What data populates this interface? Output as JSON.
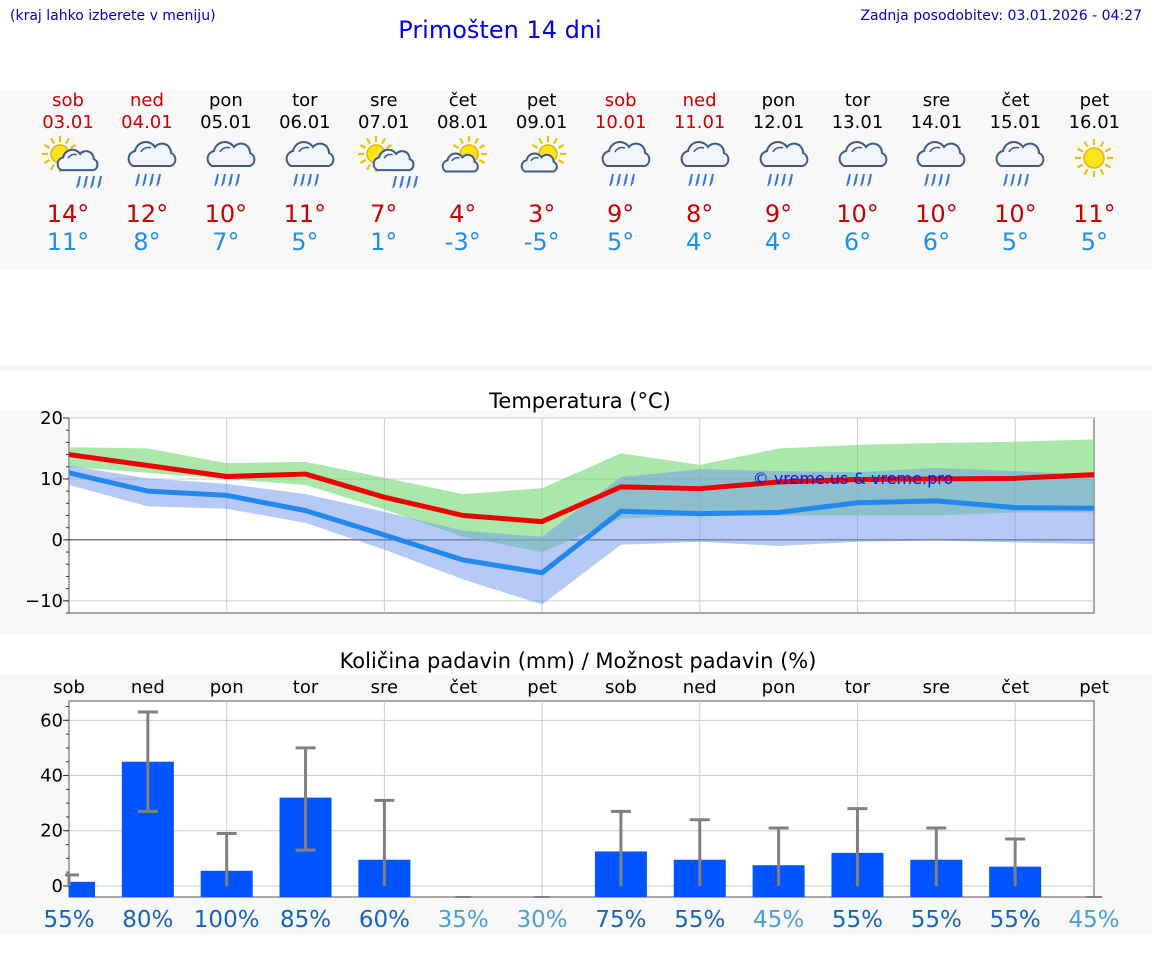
{
  "header": {
    "hint": "(kraj lahko izberete v meniju)",
    "title": "Primošten 14 dni",
    "updated": "Zadnja posodobitev: 03.01.2026 - 04:27"
  },
  "days": [
    {
      "name": "sob",
      "date": "03.01",
      "tmax": "14°",
      "tmin": "11°",
      "icon": "sun-cloud-rain-icon",
      "weekend": true
    },
    {
      "name": "ned",
      "date": "04.01",
      "tmax": "12°",
      "tmin": "8°",
      "icon": "cloud-rain-icon",
      "weekend": true
    },
    {
      "name": "pon",
      "date": "05.01",
      "tmax": "10°",
      "tmin": "7°",
      "icon": "cloud-rain-icon",
      "weekend": false
    },
    {
      "name": "tor",
      "date": "06.01",
      "tmax": "11°",
      "tmin": "5°",
      "icon": "cloud-rain-icon",
      "weekend": false
    },
    {
      "name": "sre",
      "date": "07.01",
      "tmax": "7°",
      "tmin": "1°",
      "icon": "sun-cloud-rain-icon",
      "weekend": false
    },
    {
      "name": "čet",
      "date": "08.01",
      "tmax": "4°",
      "tmin": "-3°",
      "icon": "sun-cloud-icon",
      "weekend": false
    },
    {
      "name": "pet",
      "date": "09.01",
      "tmax": "3°",
      "tmin": "-5°",
      "icon": "sun-cloud-icon",
      "weekend": false
    },
    {
      "name": "sob",
      "date": "10.01",
      "tmax": "9°",
      "tmin": "5°",
      "icon": "cloud-rain-icon",
      "weekend": true
    },
    {
      "name": "ned",
      "date": "11.01",
      "tmax": "8°",
      "tmin": "4°",
      "icon": "cloud-rain-icon",
      "weekend": true
    },
    {
      "name": "pon",
      "date": "12.01",
      "tmax": "9°",
      "tmin": "4°",
      "icon": "cloud-rain-icon",
      "weekend": false
    },
    {
      "name": "tor",
      "date": "13.01",
      "tmax": "10°",
      "tmin": "6°",
      "icon": "cloud-rain-icon",
      "weekend": false
    },
    {
      "name": "sre",
      "date": "14.01",
      "tmax": "10°",
      "tmin": "6°",
      "icon": "cloud-rain-icon",
      "weekend": false
    },
    {
      "name": "čet",
      "date": "15.01",
      "tmax": "10°",
      "tmin": "5°",
      "icon": "cloud-rain-icon",
      "weekend": false
    },
    {
      "name": "pet",
      "date": "16.01",
      "tmax": "11°",
      "tmin": "5°",
      "icon": "sun-icon",
      "weekend": false
    }
  ],
  "colors": {
    "weekend": "#cc0000",
    "tmax": "#cc0000",
    "tmin": "#1e90e8",
    "bar": "#0055ff",
    "pct_high": "#1565c0",
    "pct_low": "#4a9fd8"
  },
  "chart_data": [
    {
      "type": "line",
      "title": "Temperatura (°C)",
      "watermark": "© vreme.us & vreme.pro",
      "ylim": [
        -12,
        20
      ],
      "yticks": [
        "20",
        "10",
        "0",
        "−10"
      ],
      "ytick_values": [
        20,
        10,
        0,
        -10
      ],
      "x": [
        0,
        1,
        2,
        3,
        4,
        5,
        6,
        7,
        8,
        9,
        10,
        11,
        12,
        13
      ],
      "series": [
        {
          "name": "max",
          "values": [
            14,
            12.2,
            10.4,
            10.8,
            7,
            4,
            3,
            8.7,
            8.4,
            9.5,
            9.9,
            10,
            10.1,
            10.7
          ]
        },
        {
          "name": "min",
          "values": [
            11,
            8,
            7.3,
            4.8,
            0.8,
            -3.3,
            -5.4,
            4.7,
            4.3,
            4.5,
            6.1,
            6.4,
            5.3,
            5.2
          ]
        },
        {
          "name": "max_range_high",
          "values": [
            15.2,
            15,
            12.6,
            12.8,
            10.2,
            7.5,
            8.5,
            14.2,
            12.3,
            15,
            15.6,
            15.9,
            16.1,
            16.5
          ]
        },
        {
          "name": "max_range_low",
          "values": [
            12,
            11,
            10,
            9,
            5,
            0.5,
            -2,
            3.5,
            4,
            4,
            4,
            4,
            4.5,
            4.5
          ]
        },
        {
          "name": "min_range_high",
          "values": [
            12.2,
            10.1,
            9.2,
            7.5,
            4.6,
            1.5,
            0.5,
            10.3,
            11.6,
            11.3,
            11.1,
            11.8,
            11.3,
            10.6
          ]
        },
        {
          "name": "min_range_low",
          "values": [
            9,
            5.5,
            5.1,
            2.8,
            -1.6,
            -6.5,
            -10.6,
            -0.8,
            -0.3,
            -1,
            -0.3,
            -0.1,
            -0.4,
            -0.7
          ]
        }
      ]
    },
    {
      "type": "bar",
      "title": "Količina padavin (mm) / Možnost padavin (%)",
      "ylim": [
        -4,
        67
      ],
      "yticks": [
        "60",
        "40",
        "20",
        "0"
      ],
      "ytick_values": [
        60,
        40,
        20,
        0
      ],
      "categories": [
        "sob",
        "ned",
        "pon",
        "tor",
        "sre",
        "čet",
        "pet",
        "sob",
        "ned",
        "pon",
        "tor",
        "sre",
        "čet",
        "pet"
      ],
      "values": [
        1.5,
        45,
        5.5,
        32,
        9.5,
        0,
        0,
        12.5,
        9.5,
        7.5,
        12,
        9.5,
        7,
        0
      ],
      "err_low": [
        null,
        27,
        null,
        13,
        null,
        null,
        null,
        null,
        null,
        null,
        null,
        null,
        null,
        null
      ],
      "err_high": [
        4,
        63,
        19,
        50,
        31,
        0,
        0,
        27,
        24,
        21,
        28,
        21,
        17,
        0
      ],
      "probability": [
        "55%",
        "80%",
        "100%",
        "85%",
        "60%",
        "35%",
        "30%",
        "75%",
        "55%",
        "45%",
        "55%",
        "55%",
        "55%",
        "45%"
      ]
    }
  ]
}
